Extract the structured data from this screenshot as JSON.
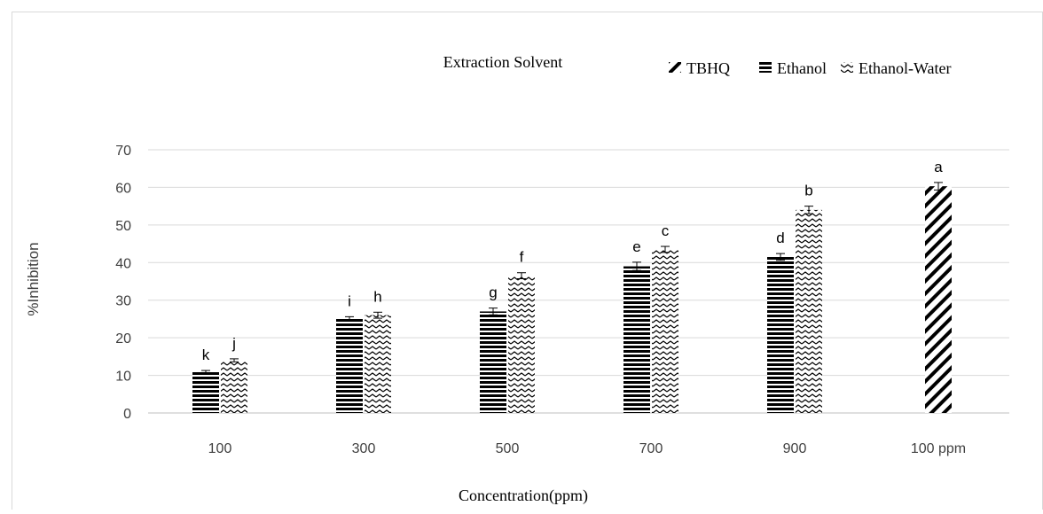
{
  "chart_data": {
    "type": "bar",
    "legend_title": "Extraction Solvent",
    "legend_position": "top-right",
    "xlabel": "Concentration(ppm)",
    "ylabel": "%Inhibition",
    "ylim": [
      0,
      70
    ],
    "yticks": [
      "0",
      "10",
      "20",
      "30",
      "40",
      "50",
      "60",
      "70"
    ],
    "grid": true,
    "categories": [
      "100",
      "300",
      "500",
      "700",
      "900",
      "100 ppm"
    ],
    "series": [
      {
        "name": "Ethanol",
        "pattern": "horizontal-stripes",
        "values": [
          11,
          25,
          27,
          39,
          41.5,
          null
        ],
        "errors": [
          0.3,
          0.6,
          0.9,
          1.1,
          0.9,
          null
        ],
        "letters": [
          "k",
          "i",
          "g",
          "e",
          "d",
          null
        ]
      },
      {
        "name": "Ethanol-Water",
        "pattern": "zigzag",
        "values": [
          14,
          26,
          36.5,
          43.5,
          54,
          null
        ],
        "errors": [
          0.4,
          0.8,
          0.8,
          0.8,
          1.0,
          null
        ],
        "letters": [
          "j",
          "h",
          "f",
          "c",
          "b",
          null
        ]
      },
      {
        "name": "TBHQ",
        "pattern": "diagonal-stripes",
        "values": [
          null,
          null,
          null,
          null,
          null,
          60.3
        ],
        "errors": [
          null,
          null,
          null,
          null,
          null,
          1.0
        ],
        "letters": [
          null,
          null,
          null,
          null,
          null,
          "a"
        ]
      }
    ],
    "legend_order": [
      "TBHQ",
      "Ethanol",
      "Ethanol-Water"
    ],
    "colors": {
      "bar": "#000000",
      "grid": "#d9d9d9",
      "axis": "#bfbfbf",
      "tick_text": "#404040",
      "border": "#d9d9d9"
    }
  }
}
